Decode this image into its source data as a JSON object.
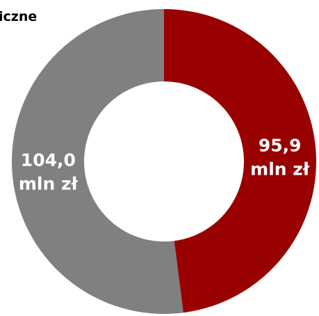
{
  "chart_data": {
    "type": "donut",
    "title": "iczne",
    "categories": [
      null,
      null
    ],
    "values": [
      95.9,
      104.0
    ],
    "value_labels": [
      "95,9 mln zł",
      "104,0 mln zł"
    ],
    "colors": [
      "#990000",
      "#808080"
    ]
  }
}
